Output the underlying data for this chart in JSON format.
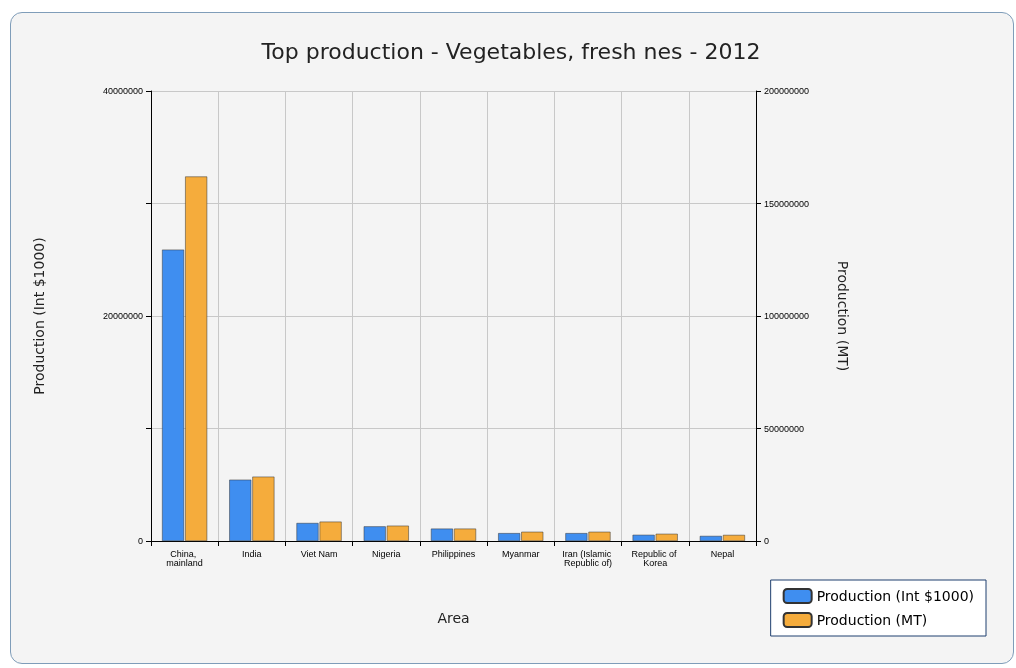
{
  "chart_data": {
    "type": "bar",
    "title": "Top production - Vegetables, fresh nes - 2012",
    "xlabel": "Area",
    "ylabel": "Production (Int $1000)",
    "y2label": "Production (MT)",
    "categories": [
      "China, mainland",
      "India",
      "Viet Nam",
      "Nigeria",
      "Philippines",
      "Myanmar",
      "Iran (Islamic Republic of)",
      "Republic of Korea",
      "Nepal"
    ],
    "series": [
      {
        "name": "Production (Int $1000)",
        "color": "#3f8ef0",
        "values": [
          25900000,
          5450000,
          1600000,
          1300000,
          1100000,
          700000,
          700000,
          550000,
          450000
        ]
      },
      {
        "name": "Production (MT)",
        "color": "#f5ac3c",
        "axis": "y2",
        "values": [
          162000000,
          28600000,
          8600000,
          6800000,
          5500000,
          4100000,
          4100000,
          3200000,
          2700000
        ]
      }
    ],
    "ylim": [
      0,
      40000000
    ],
    "yticks": [
      0,
      {
        "value": 10000000,
        "label": null
      },
      20000000,
      {
        "value": 30000000,
        "label": null
      },
      40000000
    ],
    "y2lim": [
      0,
      200000000
    ],
    "y2ticks": [
      0,
      50000000,
      100000000,
      150000000,
      200000000
    ],
    "grid": true,
    "legend": "bottom right"
  }
}
